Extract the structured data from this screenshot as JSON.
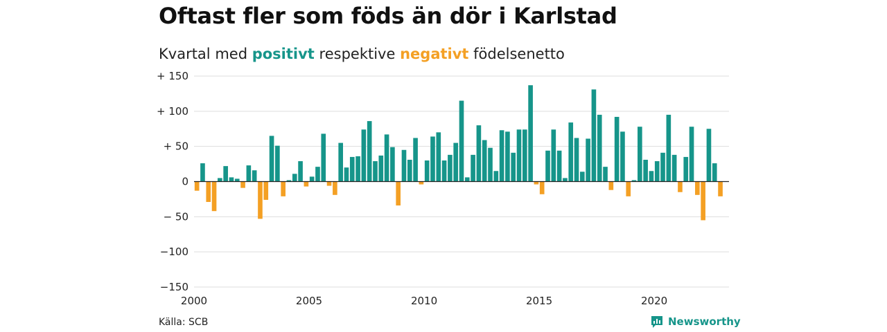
{
  "header": {
    "title": "Oftast fler som föds än dör i Karlstad",
    "subtitle_prefix": "Kvartal med",
    "subtitle_positive": "positivt",
    "subtitle_middle": "respektive",
    "subtitle_negative": "negativt",
    "subtitle_suffix": "födelsenetto"
  },
  "footer": {
    "source": "Källa: SCB",
    "brand": "Newsworthy"
  },
  "colors": {
    "positive": "#16958a",
    "negative": "#f4a024",
    "grid": "#dddddd",
    "axis": "#222222"
  },
  "chart_data": {
    "type": "bar",
    "title": "Oftast fler som föds än dör i Karlstad",
    "subtitle": "Kvartal med positivt respektive negativt födelsenetto",
    "xlabel": "",
    "ylabel": "",
    "ylim": [
      -150,
      150
    ],
    "yticks": [
      150,
      100,
      50,
      0,
      -50,
      -100,
      -150
    ],
    "ytick_labels": [
      "+ 150",
      "+ 100",
      "+  50",
      "0",
      "− 50",
      "−100",
      "−150"
    ],
    "xticks": [
      2000,
      2005,
      2010,
      2015,
      2020
    ],
    "xlim": [
      2000,
      2023.25
    ],
    "grid": true,
    "quarters_start": "2000 Q1",
    "series": [
      {
        "values": [
          -13,
          26,
          -29,
          -42,
          5,
          22,
          6,
          4,
          -9,
          23,
          16,
          -53,
          -26,
          65,
          51,
          -21,
          2,
          11,
          29,
          -7,
          7,
          21,
          68,
          -6,
          -19,
          55,
          20,
          35,
          36,
          74,
          86,
          29,
          37,
          67,
          49,
          -34,
          45,
          31,
          62,
          -4,
          30,
          64,
          70,
          30,
          38,
          55,
          115,
          6,
          38,
          80,
          59,
          48,
          15,
          73,
          71,
          41,
          74,
          74,
          137,
          -4,
          -18,
          44,
          74,
          44,
          5,
          84,
          62,
          14,
          61,
          131,
          95,
          21,
          -12,
          92,
          71,
          -21,
          2,
          78,
          31,
          15,
          29,
          41,
          95,
          38,
          -15,
          35,
          78,
          -19,
          -55,
          75,
          26,
          -21
        ]
      }
    ]
  }
}
